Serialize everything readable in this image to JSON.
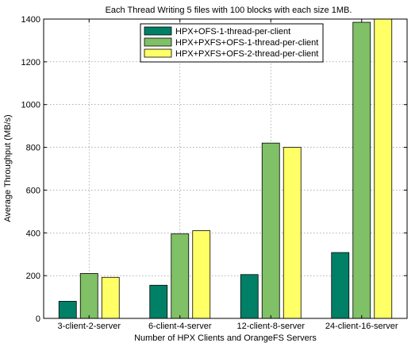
{
  "chart_data": {
    "type": "bar",
    "title": "Each Thread Writing 5 files with 100 blocks with each size 1MB.",
    "xlabel": "Number of HPX Clients and OrangeFS Servers",
    "ylabel": "Average Throughput (MB/s)",
    "ylim": [
      0,
      1400
    ],
    "yticks": [
      0,
      200,
      400,
      600,
      800,
      1000,
      1200,
      1400
    ],
    "grid": true,
    "legend_position": "top-center",
    "categories": [
      "3-client-2-server",
      "6-client-4-server",
      "12-client-8-server",
      "24-client-16-server"
    ],
    "series": [
      {
        "name": "HPX+OFS-1-thread-per-client",
        "color": "#008066",
        "values": [
          80,
          155,
          205,
          308
        ]
      },
      {
        "name": "HPX+PXFS+OFS-1-thread-per-client",
        "color": "#80c066",
        "values": [
          210,
          395,
          820,
          1385
        ]
      },
      {
        "name": "HPX+PXFS+OFS-2-thread-per-client",
        "color": "#ffff66",
        "values": [
          192,
          410,
          800,
          1400
        ]
      }
    ]
  }
}
